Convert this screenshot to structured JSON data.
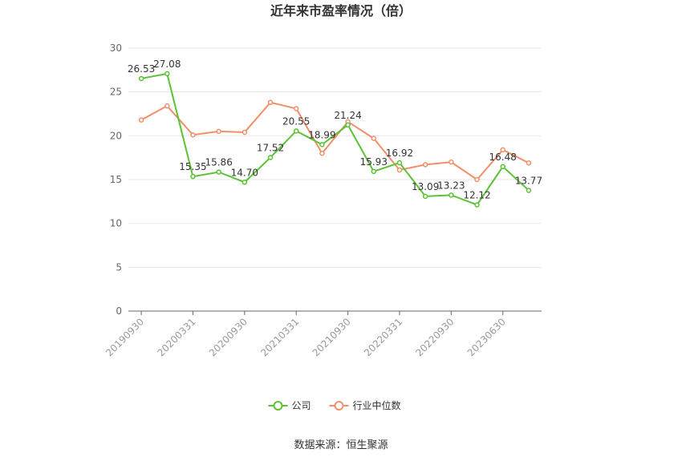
{
  "chart_data": {
    "type": "line",
    "title": "近年来市盈率情况（倍）",
    "categories": [
      "20190930",
      null,
      "20200331",
      null,
      "20200930",
      null,
      "20210331",
      null,
      "20210930",
      null,
      "20220331",
      null,
      "20220930",
      null,
      "20230630",
      null
    ],
    "series": [
      {
        "name": "公司",
        "color": "#5bc236",
        "values": [
          26.53,
          27.08,
          15.35,
          15.86,
          14.7,
          17.52,
          20.55,
          18.99,
          21.24,
          15.93,
          16.92,
          13.09,
          13.23,
          12.12,
          16.48,
          13.77
        ],
        "value_labels": [
          "26.53",
          "27.08",
          "15.35",
          "15.86",
          "14.70",
          "17.52",
          "20.55",
          "18.99",
          "21.24",
          "15.93",
          "16.92",
          "13.09",
          "13.23",
          "12.12",
          "16.48",
          "13.77"
        ]
      },
      {
        "name": "行业中位数",
        "color": "#f0906a",
        "values": [
          21.8,
          23.4,
          20.1,
          20.5,
          20.4,
          23.8,
          23.1,
          18.0,
          21.6,
          19.7,
          16.1,
          16.7,
          17.0,
          15.0,
          18.4,
          16.9
        ]
      }
    ],
    "ylim": [
      0,
      30
    ],
    "yticks": [
      0,
      5,
      10,
      15,
      20,
      25,
      30
    ],
    "grid": true,
    "legend": "bottom",
    "source": "数据来源：恒生聚源"
  }
}
